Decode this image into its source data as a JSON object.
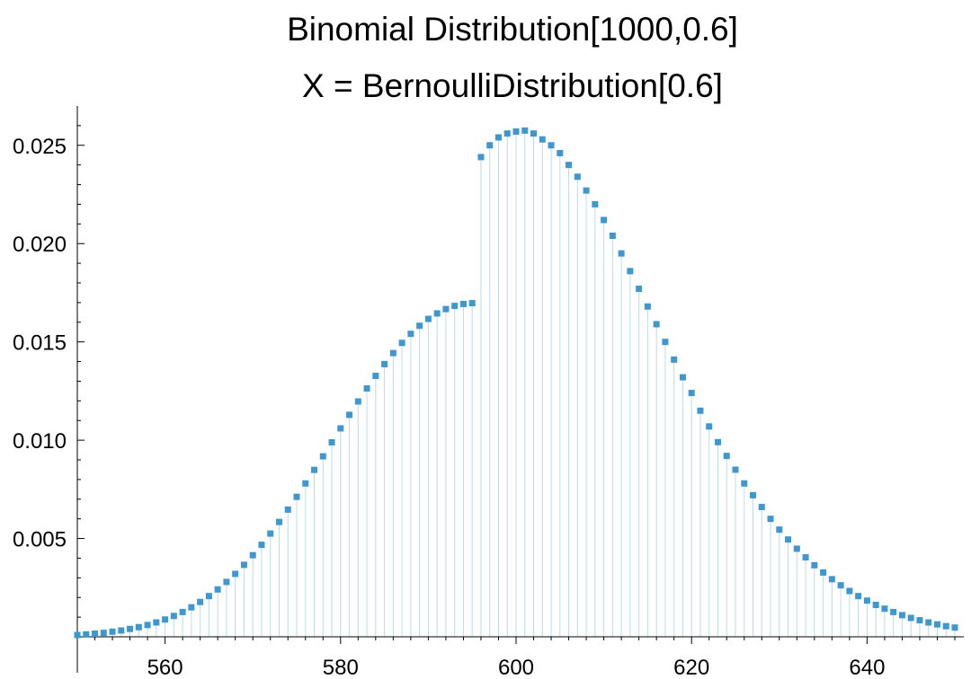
{
  "chart_data": {
    "type": "scatter",
    "style": "stem",
    "title": [
      "Binomial Distribution[1000,0.6]",
      "X = BernoulliDistribution[0.6]"
    ],
    "xlabel": "",
    "ylabel": "",
    "xlim": [
      550,
      650
    ],
    "ylim": [
      0,
      0.027
    ],
    "x_ticks": [
      560,
      580,
      600,
      620,
      640
    ],
    "y_ticks": [
      0.005,
      0.01,
      0.015,
      0.02,
      0.025
    ],
    "y_tick_labels": [
      "0.005",
      "0.010",
      "0.015",
      "0.020",
      "0.025"
    ],
    "distribution": {
      "name": "Binomial",
      "n": 1000,
      "p": 0.6
    },
    "grid": false,
    "colors": {
      "marker": "#3f97cf",
      "stem": "#b9dced",
      "axis": "#000000"
    },
    "series": [
      {
        "x": [
          550,
          551,
          552,
          553,
          554,
          555,
          556,
          557,
          558,
          559,
          560,
          561,
          562,
          563,
          564,
          565,
          566,
          567,
          568,
          569,
          570,
          571,
          572,
          573,
          574,
          575,
          576,
          577,
          578,
          579,
          580,
          581,
          582,
          583,
          584,
          585,
          586,
          587,
          588,
          589,
          590,
          591,
          592,
          593,
          594,
          595,
          596,
          597,
          598,
          599,
          600,
          601,
          602,
          603,
          604,
          605,
          606,
          607,
          608,
          609,
          610,
          611,
          612,
          613,
          614,
          615,
          616,
          617,
          618,
          619,
          620,
          621,
          622,
          623,
          624,
          625,
          626,
          627,
          628,
          629,
          630,
          631,
          632,
          633,
          634,
          635,
          636,
          637,
          638,
          639,
          640,
          641,
          642,
          643,
          644,
          645,
          646,
          647,
          648,
          649,
          650
        ],
        "values": [
          9e-05,
          0.00012,
          0.00016,
          0.0002,
          0.00026,
          0.00032,
          0.0004,
          0.00049,
          0.0006,
          0.00073,
          0.00088,
          0.00106,
          0.00126,
          0.0015,
          0.00177,
          0.00207,
          0.00241,
          0.00279,
          0.0032,
          0.00366,
          0.00415,
          0.00468,
          0.00525,
          0.00584,
          0.00647,
          0.00712,
          0.0078,
          0.00849,
          0.00918,
          0.00989,
          0.0106,
          0.01129,
          0.01197,
          0.01263,
          0.01327,
          0.01387,
          0.01443,
          0.01495,
          0.01541,
          0.01582,
          0.01617,
          0.01645,
          0.01667,
          0.01683,
          0.01693,
          0.01697,
          0.0244,
          0.025,
          0.0254,
          0.0256,
          0.0257,
          0.02575,
          0.0256,
          0.0253,
          0.025,
          0.0246,
          0.024,
          0.0234,
          0.0227,
          0.022,
          0.0212,
          0.0204,
          0.0195,
          0.0186,
          0.0177,
          0.0168,
          0.0159,
          0.015,
          0.0141,
          0.0132,
          0.0124,
          0.0115,
          0.0107,
          0.0099,
          0.0092,
          0.0085,
          0.0078,
          0.0072,
          0.0066,
          0.006,
          0.00545,
          0.00495,
          0.00448,
          0.00404,
          0.00364,
          0.00327,
          0.00293,
          0.00262,
          0.00233,
          0.00207,
          0.00184,
          0.00162,
          0.00143,
          0.00126,
          0.0011,
          0.00096,
          0.00084,
          0.00073,
          0.00063,
          0.00054,
          0.00047
        ]
      }
    ]
  }
}
